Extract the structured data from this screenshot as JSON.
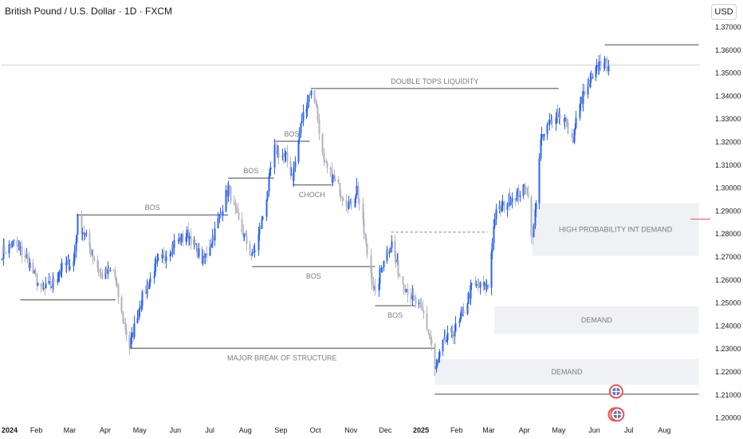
{
  "header": {
    "title": "British Pound / U.S. Dollar · 1D · FXCM",
    "currency_button": "USD"
  },
  "chart_data": {
    "type": "candlestick",
    "title": "British Pound / U.S. Dollar · 1D · FXCM",
    "x_tick_labels": [
      "2024",
      "Feb",
      "Mar",
      "Apr",
      "May",
      "Jun",
      "Jul",
      "Aug",
      "Sep",
      "Oct",
      "Nov",
      "Dec",
      "2025",
      "Feb",
      "Mar",
      "Apr",
      "May",
      "Jun",
      "Jul",
      "Aug"
    ],
    "y_tick_labels": [
      "1.37000",
      "1.36000",
      "1.35000",
      "1.34000",
      "1.33000",
      "1.32000",
      "1.31000",
      "1.30000",
      "1.29000",
      "1.28000",
      "1.27000",
      "1.26000",
      "1.25000",
      "1.24000",
      "1.23000",
      "1.22000",
      "1.21000",
      "1.20000"
    ],
    "ylim": [
      1.2,
      1.37
    ],
    "colors": {
      "up": "#2962ff",
      "down": "#b2b5be",
      "zone": "#f0f1f4",
      "line": "#434651",
      "marker": "#ef5350"
    },
    "anchors": [
      [
        "2024-01-02",
        1.272
      ],
      [
        "2024-01-12",
        1.276
      ],
      [
        "2024-01-23",
        1.27
      ],
      [
        "2024-02-05",
        1.255
      ],
      [
        "2024-02-14",
        1.258
      ],
      [
        "2024-02-22",
        1.265
      ],
      [
        "2024-03-04",
        1.268
      ],
      [
        "2024-03-08",
        1.286
      ],
      [
        "2024-03-15",
        1.278
      ],
      [
        "2024-03-28",
        1.262
      ],
      [
        "2024-04-08",
        1.264
      ],
      [
        "2024-04-15",
        1.245
      ],
      [
        "2024-04-22",
        1.231
      ],
      [
        "2024-05-01",
        1.25
      ],
      [
        "2024-05-15",
        1.266
      ],
      [
        "2024-05-31",
        1.276
      ],
      [
        "2024-06-12",
        1.28
      ],
      [
        "2024-06-25",
        1.268
      ],
      [
        "2024-07-05",
        1.281
      ],
      [
        "2024-07-17",
        1.3
      ],
      [
        "2024-07-26",
        1.285
      ],
      [
        "2024-08-07",
        1.27
      ],
      [
        "2024-08-15",
        1.285
      ],
      [
        "2024-08-26",
        1.317
      ],
      [
        "2024-09-05",
        1.313
      ],
      [
        "2024-09-11",
        1.305
      ],
      [
        "2024-09-19",
        1.33
      ],
      [
        "2024-09-26",
        1.342
      ],
      [
        "2024-10-01",
        1.338
      ],
      [
        "2024-10-08",
        1.31
      ],
      [
        "2024-10-15",
        1.305
      ],
      [
        "2024-10-31",
        1.292
      ],
      [
        "2024-11-06",
        1.3
      ],
      [
        "2024-11-14",
        1.274
      ],
      [
        "2024-11-22",
        1.253
      ],
      [
        "2024-11-29",
        1.27
      ],
      [
        "2024-12-06",
        1.276
      ],
      [
        "2024-12-13",
        1.262
      ],
      [
        "2024-12-23",
        1.253
      ],
      [
        "2025-01-03",
        1.245
      ],
      [
        "2025-01-10",
        1.232
      ],
      [
        "2025-01-13",
        1.22
      ],
      [
        "2025-01-20",
        1.232
      ],
      [
        "2025-02-03",
        1.241
      ],
      [
        "2025-02-14",
        1.257
      ],
      [
        "2025-02-28",
        1.257
      ],
      [
        "2025-03-06",
        1.288
      ],
      [
        "2025-03-20",
        1.296
      ],
      [
        "2025-04-03",
        1.3
      ],
      [
        "2025-04-08",
        1.277
      ],
      [
        "2025-04-15",
        1.32
      ],
      [
        "2025-04-28",
        1.333
      ],
      [
        "2025-05-06",
        1.33
      ],
      [
        "2025-05-12",
        1.32
      ],
      [
        "2025-05-20",
        1.338
      ],
      [
        "2025-05-30",
        1.347
      ],
      [
        "2025-06-06",
        1.355
      ],
      [
        "2025-06-13",
        1.353
      ]
    ],
    "levels": [
      {
        "label": "BOS",
        "price": 1.2885,
        "from": "2024-03-07",
        "to": "2024-07-17"
      },
      {
        "label": "",
        "price": 1.2515,
        "from": "2024-01-18",
        "to": "2024-04-10"
      },
      {
        "label": "BOS",
        "price": 1.3045,
        "from": "2024-07-17",
        "to": "2024-08-26"
      },
      {
        "label": "BOS",
        "price": 1.3205,
        "from": "2024-08-26",
        "to": "2024-09-26"
      },
      {
        "label": "CHOCH",
        "price": 1.3015,
        "from": "2024-09-11",
        "to": "2024-10-15"
      },
      {
        "label": "DOUBLE TOPS LIQUIDITY",
        "price": 1.3435,
        "from": "2024-09-27",
        "to": "2025-05-01"
      },
      {
        "label": "BOS",
        "price": 1.266,
        "from": "2024-08-07",
        "to": "2024-11-22"
      },
      {
        "label": "BOS",
        "price": 1.249,
        "from": "2024-11-22",
        "to": "2024-12-27"
      },
      {
        "label": "MAJOR BREAK OF STRUCTURE",
        "price": 1.2305,
        "from": "2024-04-22",
        "to": "2025-01-13"
      },
      {
        "label": "",
        "price": 1.2105,
        "from": "2025-01-13",
        "to": "2025-08-31"
      },
      {
        "label": "",
        "price": 1.3625,
        "from": "2025-06-10",
        "to": "2025-08-31"
      }
    ],
    "dashed_levels": [
      {
        "price": 1.281,
        "from": "2024-12-06",
        "to": "2025-02-28"
      }
    ],
    "zones": [
      {
        "label": "HIGH PROBABILITY INT DEMAND",
        "top": 1.2935,
        "bottom": 1.2705,
        "from": "2025-04-08",
        "to": "2025-08-31"
      },
      {
        "label": "DEMAND",
        "top": 1.2485,
        "bottom": 1.2365,
        "from": "2025-03-06",
        "to": "2025-08-31"
      },
      {
        "label": "DEMAND",
        "top": 1.2255,
        "bottom": 1.2145,
        "from": "2025-01-13",
        "to": "2025-08-31"
      }
    ],
    "last_price_marker": 1.2865,
    "current_price_line": 1.3535,
    "flag_markers": [
      {
        "date": "2025-06-20",
        "price": 1.2115
      },
      {
        "date": "2025-06-19",
        "price": 1.2015
      },
      {
        "date": "2025-06-21",
        "price": 1.2015
      }
    ]
  }
}
